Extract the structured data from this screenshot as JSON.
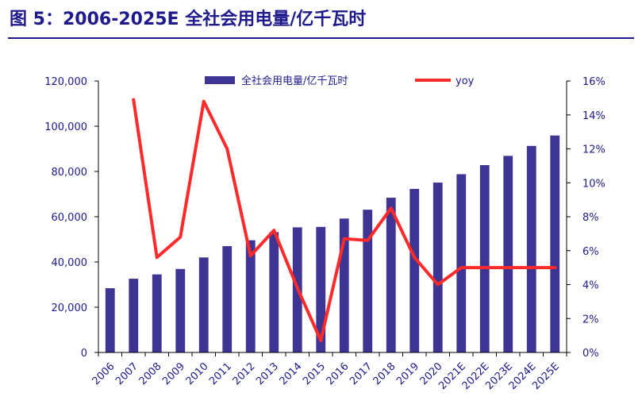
{
  "figure": {
    "title": "图 5：2006-2025E 全社会用电量/亿千瓦时"
  },
  "chart_data": {
    "type": "bar",
    "categories": [
      "2006",
      "2007",
      "2008",
      "2009",
      "2010",
      "2011",
      "2012",
      "2013",
      "2014",
      "2015",
      "2016",
      "2017",
      "2018",
      "2019",
      "2020",
      "2021E",
      "2022E",
      "2023E",
      "2024E",
      "2025E"
    ],
    "series": [
      {
        "name": "全社会用电量/亿千瓦时",
        "type": "bar",
        "axis": "left",
        "color": "#3e3493",
        "values": [
          28400,
          32600,
          34500,
          36900,
          42000,
          47000,
          49600,
          53200,
          55300,
          55500,
          59200,
          63100,
          68400,
          72300,
          75100,
          78800,
          82800,
          86900,
          91300,
          95900
        ]
      },
      {
        "name": "yoy",
        "type": "line",
        "axis": "right",
        "color": "#ff2a2a",
        "unit": "%",
        "values": [
          null,
          14.9,
          5.6,
          6.8,
          14.8,
          12.0,
          5.7,
          7.2,
          3.8,
          0.7,
          6.7,
          6.6,
          8.5,
          5.6,
          4.0,
          5.0,
          5.0,
          5.0,
          5.0,
          5.0
        ]
      }
    ],
    "y_left": {
      "ylim": [
        0,
        120000
      ],
      "ticks": [
        0,
        20000,
        40000,
        60000,
        80000,
        100000,
        120000
      ],
      "tick_labels": [
        "0",
        "20,000",
        "40,000",
        "60,000",
        "80,000",
        "100,000",
        "120,000"
      ]
    },
    "y_right": {
      "ylim": [
        0,
        16
      ],
      "ticks": [
        0,
        2,
        4,
        6,
        8,
        10,
        12,
        14,
        16
      ],
      "tick_labels": [
        "0%",
        "2%",
        "4%",
        "6%",
        "8%",
        "10%",
        "12%",
        "14%",
        "16%"
      ]
    },
    "legend": {
      "placement": "top-center"
    },
    "grid": false
  }
}
